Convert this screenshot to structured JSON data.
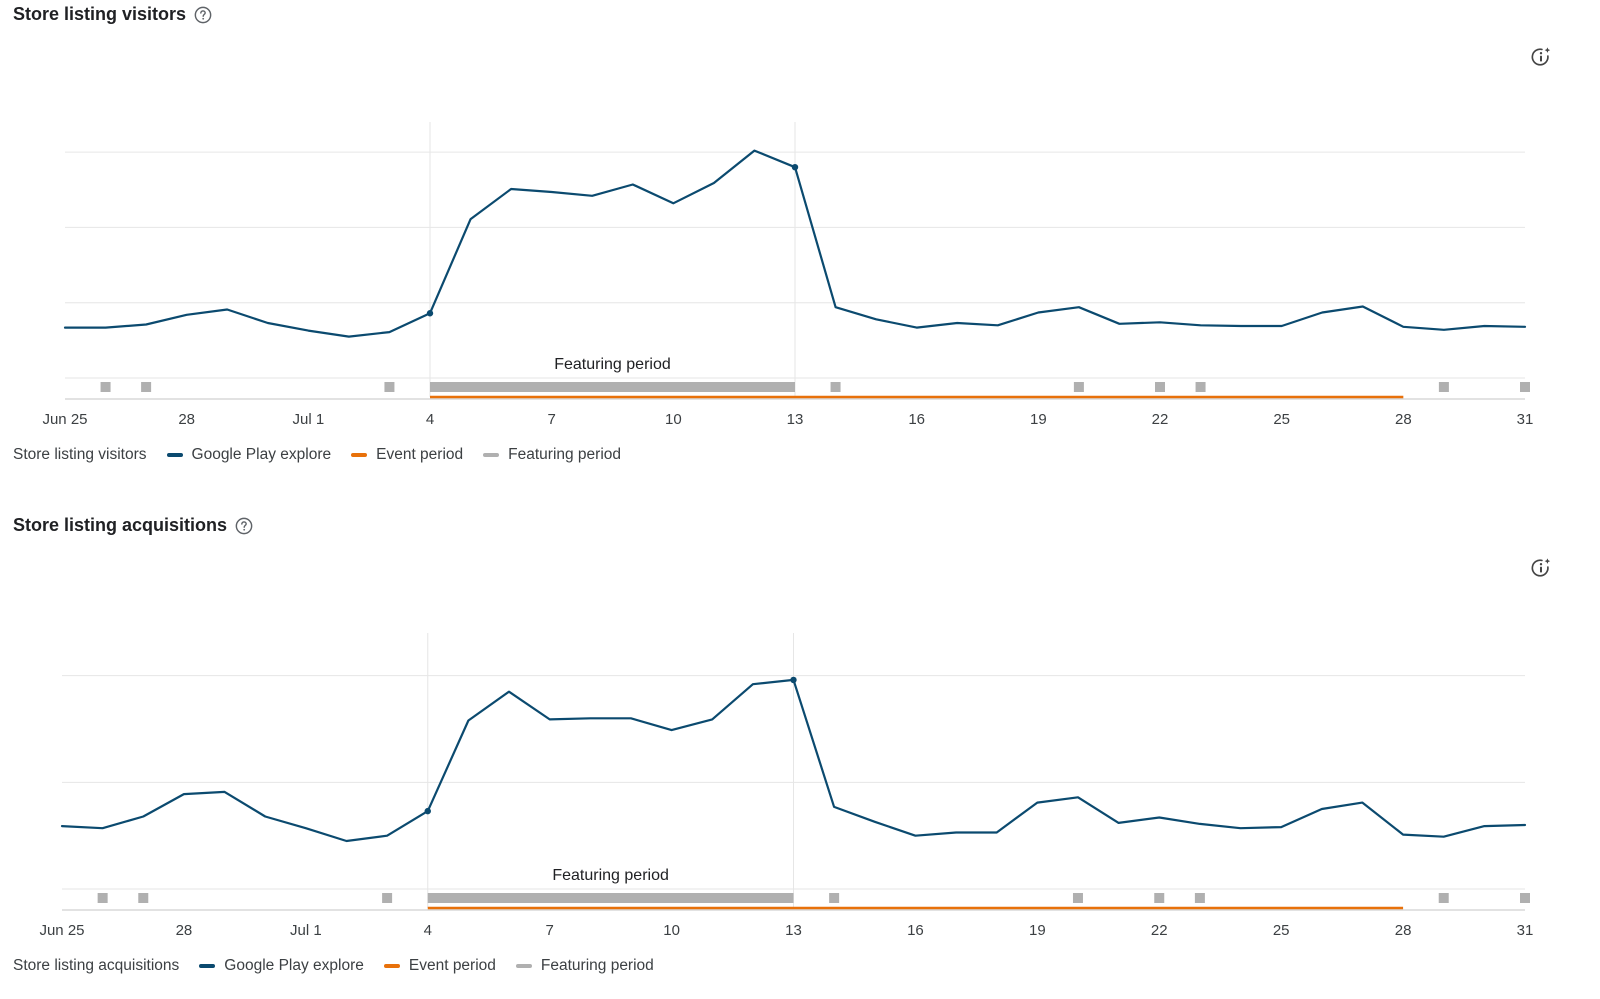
{
  "colors": {
    "series": "#0b4a6f",
    "event": "#e8710a",
    "featuring": "#b0b0b0",
    "grid": "#e6e6e6",
    "axis": "#c4c4c4"
  },
  "icons": {
    "help": "help-circle-icon",
    "insight": "insight-sparkle-icon"
  },
  "chart_data": [
    {
      "type": "line",
      "title": "Store listing visitors",
      "xlabel": "",
      "ylabel": "",
      "x_ticks": [
        "Jun 25",
        "28",
        "Jul 1",
        "4",
        "7",
        "10",
        "13",
        "16",
        "19",
        "22",
        "25",
        "28",
        "31"
      ],
      "x_tick_days": [
        0,
        3,
        6,
        9,
        12,
        15,
        18,
        21,
        24,
        27,
        30,
        33,
        36
      ],
      "ylim": [
        0,
        3.4
      ],
      "gridlines": [
        1,
        2,
        3
      ],
      "grid": true,
      "series": [
        {
          "name": "Google Play explore",
          "values": [
            0.67,
            0.67,
            0.71,
            0.84,
            0.91,
            0.73,
            0.63,
            0.55,
            0.61,
            0.86,
            2.11,
            2.51,
            2.47,
            2.42,
            2.57,
            2.32,
            2.59,
            3.02,
            2.8,
            0.94,
            0.78,
            0.67,
            0.73,
            0.7,
            0.87,
            0.94,
            0.72,
            0.74,
            0.7,
            0.69,
            0.69,
            0.87,
            0.95,
            0.68,
            0.64,
            0.69,
            0.68
          ],
          "markers": [
            9,
            18
          ]
        }
      ],
      "featuring_period": {
        "label": "Featuring period",
        "start": "4",
        "end": "13",
        "start_day": 9,
        "end_day": 18
      },
      "event_period": {
        "name": "Event period",
        "start": "4",
        "end": "28",
        "start_day": 9,
        "end_day": 33
      },
      "featuring_markers_days": [
        1,
        2,
        8,
        19,
        25,
        27,
        28,
        34,
        36
      ],
      "legend": {
        "title": "Store listing visitors",
        "entries": [
          "Google Play explore",
          "Event period",
          "Featuring period"
        ],
        "position": "bottom-left"
      }
    },
    {
      "type": "line",
      "title": "Store listing acquisitions",
      "xlabel": "",
      "ylabel": "",
      "x_ticks": [
        "Jun 25",
        "28",
        "Jul 1",
        "4",
        "7",
        "10",
        "13",
        "16",
        "19",
        "22",
        "25",
        "28",
        "31"
      ],
      "x_tick_days": [
        0,
        3,
        6,
        9,
        12,
        15,
        18,
        21,
        24,
        27,
        30,
        33,
        36
      ],
      "ylim": [
        0,
        2.4
      ],
      "gridlines": [
        1,
        2
      ],
      "grid": true,
      "series": [
        {
          "name": "Google Play explore",
          "values": [
            0.59,
            0.57,
            0.68,
            0.89,
            0.91,
            0.68,
            0.57,
            0.45,
            0.5,
            0.73,
            1.58,
            1.85,
            1.59,
            1.6,
            1.6,
            1.49,
            1.59,
            1.92,
            1.96,
            0.77,
            0.63,
            0.5,
            0.53,
            0.53,
            0.81,
            0.86,
            0.62,
            0.67,
            0.61,
            0.57,
            0.58,
            0.75,
            0.81,
            0.51,
            0.49,
            0.59,
            0.6
          ],
          "markers": [
            9,
            18
          ]
        }
      ],
      "featuring_period": {
        "label": "Featuring period",
        "start": "4",
        "end": "13",
        "start_day": 9,
        "end_day": 18
      },
      "event_period": {
        "name": "Event period",
        "start": "4",
        "end": "28",
        "start_day": 9,
        "end_day": 33
      },
      "featuring_markers_days": [
        1,
        2,
        8,
        19,
        25,
        27,
        28,
        34,
        36
      ],
      "legend": {
        "title": "Store listing acquisitions",
        "entries": [
          "Google Play explore",
          "Event period",
          "Featuring period"
        ],
        "position": "bottom-left"
      }
    }
  ]
}
